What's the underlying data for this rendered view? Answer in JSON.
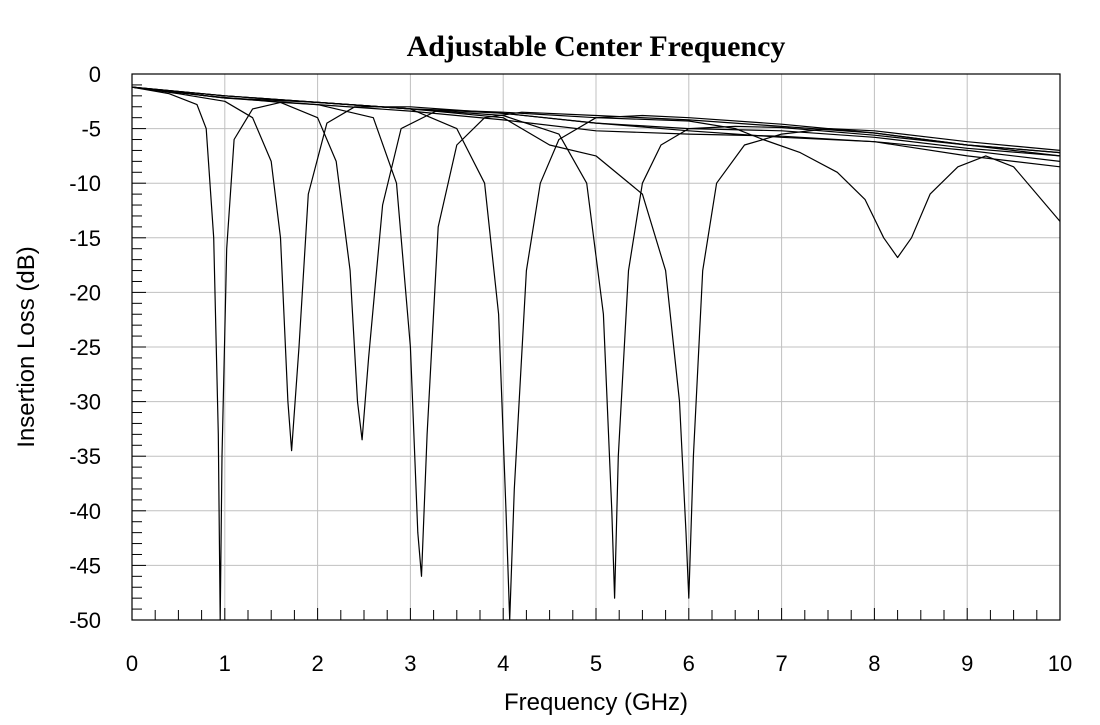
{
  "chart_data": {
    "type": "line",
    "title": "Adjustable Center Frequency",
    "xlabel": "Frequency (GHz)",
    "ylabel": "Insertion Loss (dB)",
    "xlim": [
      0,
      10
    ],
    "ylim": [
      -50,
      0
    ],
    "x_ticks": [
      0,
      1,
      2,
      3,
      4,
      5,
      6,
      7,
      8,
      9,
      10
    ],
    "y_ticks": [
      0,
      -5,
      -10,
      -15,
      -20,
      -25,
      -30,
      -35,
      -40,
      -45,
      -50
    ],
    "grid": true,
    "legend": "none",
    "series": [
      {
        "x": [
          0,
          0.4,
          0.7,
          0.8,
          0.88,
          0.93,
          0.95,
          0.97,
          1.02,
          1.1,
          1.3,
          1.6,
          2,
          3,
          4,
          5,
          6,
          7,
          8,
          9,
          10
        ],
        "y": [
          -1.2,
          -1.8,
          -2.8,
          -5,
          -15,
          -33,
          -50,
          -35,
          -16,
          -6,
          -3.2,
          -2.6,
          -2.8,
          -3.4,
          -4.2,
          -5.2,
          -5.5,
          -5.7,
          -6.2,
          -7.5,
          -8.5
        ]
      },
      {
        "x": [
          0,
          0.5,
          1.0,
          1.3,
          1.5,
          1.6,
          1.68,
          1.72,
          1.8,
          1.9,
          2.1,
          2.4,
          3,
          4,
          5,
          6,
          7,
          8,
          9,
          10
        ],
        "y": [
          -1.2,
          -1.8,
          -2.5,
          -4,
          -8,
          -15,
          -30,
          -34.5,
          -25,
          -11,
          -4.5,
          -3,
          -3,
          -3.6,
          -4.5,
          -5.2,
          -5.8,
          -6.2,
          -7,
          -8
        ]
      },
      {
        "x": [
          0,
          0.8,
          1.6,
          2.0,
          2.2,
          2.35,
          2.43,
          2.48,
          2.55,
          2.7,
          2.9,
          3.3,
          4,
          5,
          6,
          7,
          8,
          9,
          10
        ],
        "y": [
          -1.2,
          -2,
          -2.6,
          -4,
          -8,
          -18,
          -30,
          -33.5,
          -26,
          -12,
          -5,
          -3.3,
          -3.6,
          -4.5,
          -5,
          -5.2,
          -5.8,
          -6.8,
          -7.5
        ]
      },
      {
        "x": [
          0,
          1,
          2,
          2.6,
          2.85,
          3.0,
          3.08,
          3.12,
          3.18,
          3.3,
          3.5,
          3.8,
          4.2,
          5,
          6,
          7,
          8,
          9,
          10
        ],
        "y": [
          -1.2,
          -2.2,
          -2.8,
          -4,
          -10,
          -25,
          -42,
          -46,
          -33,
          -14,
          -6.5,
          -4,
          -3.5,
          -3.8,
          -4.2,
          -4.8,
          -5.4,
          -6.5,
          -7.2
        ]
      },
      {
        "x": [
          0,
          1,
          2,
          3,
          3.5,
          3.8,
          3.95,
          4.03,
          4.07,
          4.12,
          4.25,
          4.4,
          4.6,
          5.0,
          5.5,
          6,
          7,
          8,
          9,
          10
        ],
        "y": [
          -1.2,
          -2,
          -2.6,
          -3.2,
          -5,
          -10,
          -22,
          -40,
          -50,
          -38,
          -18,
          -10,
          -6,
          -4,
          -3.8,
          -4,
          -4.6,
          -5.4,
          -6.5,
          -7.5
        ]
      },
      {
        "x": [
          0,
          1,
          2,
          3,
          4,
          4.6,
          4.9,
          5.08,
          5.17,
          5.2,
          5.24,
          5.35,
          5.5,
          5.7,
          6,
          6.5,
          7,
          8,
          9,
          10
        ],
        "y": [
          -1.2,
          -2,
          -2.6,
          -3.2,
          -3.8,
          -5.5,
          -10,
          -22,
          -40,
          -48,
          -35,
          -18,
          -10,
          -6.5,
          -5,
          -4.8,
          -4.9,
          -5.6,
          -6.5,
          -7.2
        ]
      },
      {
        "x": [
          0,
          1,
          2,
          3,
          4,
          4.5,
          5.0,
          5.5,
          5.75,
          5.9,
          5.97,
          6.0,
          6.05,
          6.15,
          6.3,
          6.6,
          7.0,
          7.5,
          8,
          9,
          10
        ],
        "y": [
          -1.2,
          -2,
          -2.6,
          -3.2,
          -4,
          -6.5,
          -7.5,
          -11,
          -18,
          -30,
          -42,
          -48,
          -35,
          -18,
          -10,
          -6.5,
          -5.5,
          -5,
          -5.2,
          -6.2,
          -7
        ]
      },
      {
        "x": [
          0,
          1,
          2,
          3,
          4,
          5,
          6,
          6.5,
          6.8,
          7.2,
          7.6,
          7.9,
          8.1,
          8.25,
          8.4,
          8.6,
          8.9,
          9.2,
          9.5,
          10
        ],
        "y": [
          -1.2,
          -2.2,
          -2.6,
          -3.2,
          -3.5,
          -4,
          -4.3,
          -5,
          -6,
          -7.2,
          -9,
          -11.5,
          -15,
          -16.8,
          -15,
          -11,
          -8.5,
          -7.5,
          -8.5,
          -13.5
        ]
      }
    ]
  }
}
